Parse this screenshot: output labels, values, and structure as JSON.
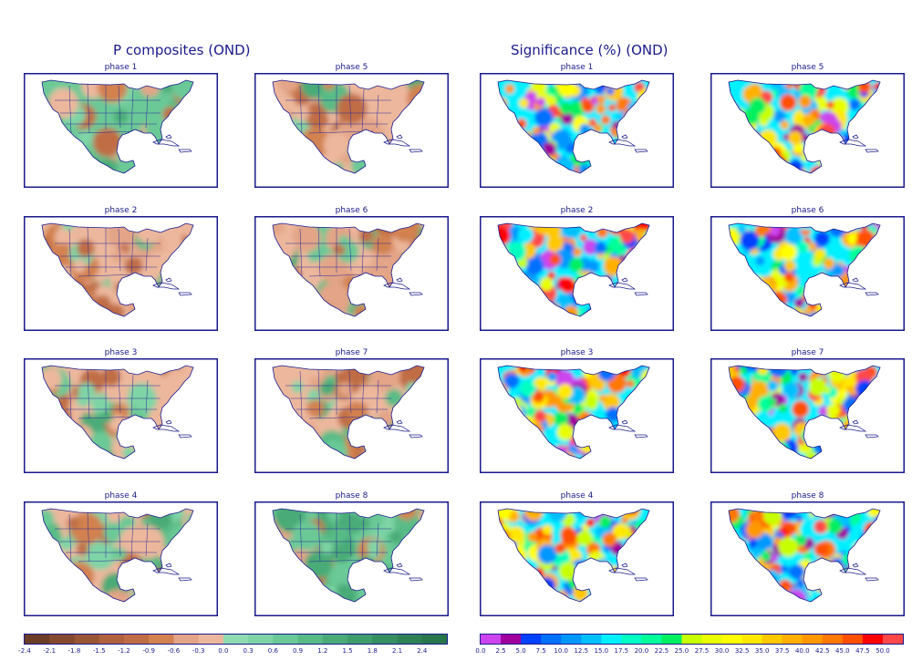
{
  "chart_data": [
    {
      "type": "heatmap",
      "title": "P composites (OND)",
      "panels": [
        "phase 1",
        "phase 2",
        "phase 3",
        "phase 4",
        "phase 5",
        "phase 6",
        "phase 7",
        "phase 8"
      ],
      "panel_layout": "2 columns x 4 rows; left column phases 1-4, right column phases 5-8",
      "colorbar": {
        "ticks": [
          "-2.4",
          "-2.1",
          "-1.8",
          "-1.5",
          "-1.2",
          "-0.9",
          "-0.6",
          "-0.3",
          "0.0",
          "0.3",
          "0.6",
          "0.9",
          "1.2",
          "1.5",
          "1.8",
          "2.1",
          "2.4"
        ],
        "colors": [
          "#6b3d26",
          "#84492e",
          "#9a5535",
          "#b0613d",
          "#c06d45",
          "#d2814f",
          "#e3a487",
          "#ecb79c",
          "#8fdcb2",
          "#7fd4a6",
          "#6ac996",
          "#58bb86",
          "#4aab77",
          "#3f9d6b",
          "#368f60",
          "#2e8155",
          "#287649"
        ],
        "placement": "bottom-left"
      },
      "panel_tendency": {
        "phase 1": "mostly wet (green), dry patches southwest and Mexico/Central America",
        "phase 2": "mostly dry (brown), wet patches northern plains and Florida",
        "phase 3": "mixed, dry north-central, wet south-east and Mexico",
        "phase 4": "mixed, dry Mexico and midwest, wet west and east",
        "phase 5": "mostly dry west, wet east",
        "phase 6": "mostly dry, wet northern plains band and Mexico patches",
        "phase 7": "mixed, dry southwest, wet central and Mexico",
        "phase 8": "mostly wet (green), dry patches west and midwest"
      }
    },
    {
      "type": "heatmap",
      "title": "Significance (%) (OND)",
      "panels": [
        "phase 1",
        "phase 2",
        "phase 3",
        "phase 4",
        "phase 5",
        "phase 6",
        "phase 7",
        "phase 8"
      ],
      "panel_layout": "2 columns x 4 rows; left column phases 1-4, right column phases 5-8",
      "colorbar": {
        "ticks": [
          "0.0",
          "2.5",
          "5.0",
          "7.5",
          "10.0",
          "12.5",
          "15.0",
          "17.5",
          "20.0",
          "22.5",
          "25.0",
          "27.5",
          "30.0",
          "32.5",
          "35.0",
          "37.5",
          "40.0",
          "42.5",
          "45.0",
          "47.5",
          "50.0"
        ],
        "colors": [
          "#cc44ee",
          "#a0009c",
          "#0040ff",
          "#0070ff",
          "#0098ff",
          "#00c0ff",
          "#00f0ff",
          "#00ffc0",
          "#00ff98",
          "#00f060",
          "#c8ff00",
          "#e8ff00",
          "#ffff00",
          "#ffe800",
          "#ffc800",
          "#ffb000",
          "#ff9800",
          "#ff7800",
          "#ff5000",
          "#ff0000",
          "#ff4848"
        ],
        "placement": "bottom-right"
      }
    }
  ],
  "titles": {
    "left": "P composites (OND)",
    "right": "Significance (%) (OND)"
  },
  "panel_labels": [
    "phase 1",
    "phase 2",
    "phase 3",
    "phase 4",
    "phase 5",
    "phase 6",
    "phase 7",
    "phase 8"
  ]
}
